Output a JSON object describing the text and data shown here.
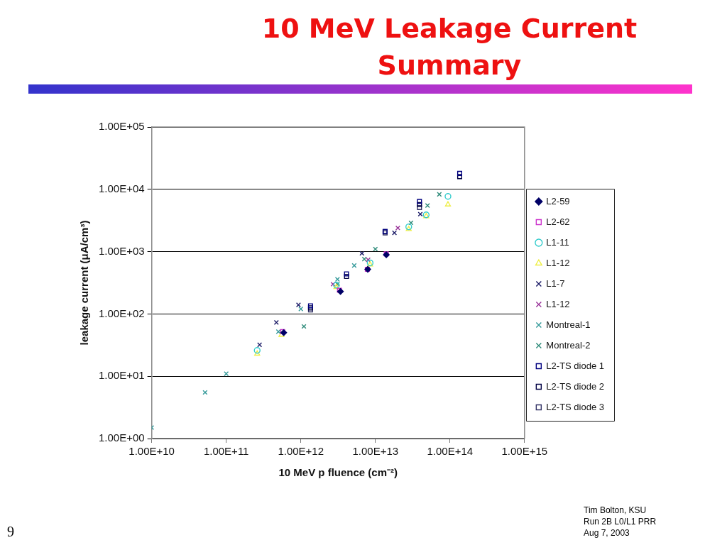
{
  "chart_data": {
    "type": "scatter",
    "title": "10 MeV Leakage Current Summary",
    "xlabel": "10 MeV p fluence (cm⁻²)",
    "ylabel": "leakage current (μA/cm³)",
    "log": "xy",
    "xlim": [
      10000000000.0,
      1000000000000000.0
    ],
    "ylim": [
      1,
      100000
    ],
    "xticks": [
      {
        "value": 10000000000.0,
        "label": "1.00E+10"
      },
      {
        "value": 100000000000.0,
        "label": "1.00E+11"
      },
      {
        "value": 1000000000000.0,
        "label": "1.00E+12"
      },
      {
        "value": 10000000000000.0,
        "label": "1.00E+13"
      },
      {
        "value": 100000000000000.0,
        "label": "1.00E+14"
      },
      {
        "value": 1000000000000000.0,
        "label": "1.00E+15"
      }
    ],
    "yticks": [
      {
        "value": 1,
        "label": "1.00E+00"
      },
      {
        "value": 10,
        "label": "1.00E+01"
      },
      {
        "value": 100,
        "label": "1.00E+02"
      },
      {
        "value": 1000,
        "label": "1.00E+03"
      },
      {
        "value": 10000,
        "label": "1.00E+04"
      },
      {
        "value": 100000,
        "label": "1.00E+05"
      }
    ],
    "grid": "y",
    "legend": "right",
    "annotations": [
      "9",
      "Tim Bolton, KSU",
      "Run 2B L0/L1 PRR",
      "Aug 7, 2003"
    ],
    "series": [
      {
        "name": "L2-59",
        "color": "#000066",
        "marker": "diamond",
        "x": [
          590000000000.0,
          3400000000000.0,
          7900000000000.0,
          14000000000000.0
        ],
        "values": [
          50,
          230,
          520,
          890
        ]
      },
      {
        "name": "L2-62",
        "color": "#cc33cc",
        "marker": "square",
        "x": [
          570000000000.0,
          3300000000000.0,
          7800000000000.0,
          14000000000000.0
        ],
        "values": [
          52,
          240,
          520,
          920
        ]
      },
      {
        "name": "L1-11",
        "color": "#33cccc",
        "marker": "circle",
        "x": [
          260000000000.0,
          3000000000000.0,
          8500000000000.0,
          28000000000000.0,
          48000000000000.0,
          94000000000000.0
        ],
        "values": [
          26,
          290,
          660,
          2500,
          3900,
          7700
        ]
      },
      {
        "name": "L1-12",
        "color": "#eeee44",
        "marker": "triangle",
        "x": [
          260000000000.0,
          550000000000.0,
          3000000000000.0,
          8500000000000.0,
          28000000000000.0,
          48000000000000.0,
          94000000000000.0
        ],
        "values": [
          23,
          46,
          270,
          620,
          2300,
          3700,
          5700
        ]
      },
      {
        "name": "L1-7",
        "color": "#1a1a66",
        "marker": "cross",
        "x": [
          280000000000.0,
          470000000000.0,
          930000000000.0,
          6600000000000.0,
          18000000000000.0,
          40000000000000.0
        ],
        "values": [
          32,
          73,
          140,
          940,
          2000,
          4000
        ]
      },
      {
        "name": "L1-12",
        "color": "#993399",
        "marker": "cross",
        "x": [
          2700000000000.0,
          8000000000000.0,
          20000000000000.0
        ],
        "values": [
          300,
          740,
          2400
        ]
      },
      {
        "name": "Montreal-1",
        "color": "#339999",
        "marker": "cross",
        "x": [
          10000000000.0,
          52000000000.0,
          100000000000.0,
          500000000000.0,
          1000000000000.0,
          3100000000000.0,
          5200000000000.0
        ],
        "values": [
          1.5,
          5.5,
          11,
          52,
          120,
          360,
          600
        ]
      },
      {
        "name": "Montreal-2",
        "color": "#2e8b7a",
        "marker": "cross",
        "x": [
          1100000000000.0,
          3100000000000.0,
          7100000000000.0,
          10000000000000.0,
          30000000000000.0,
          50000000000000.0,
          72000000000000.0
        ],
        "values": [
          63,
          300,
          760,
          1100,
          2900,
          5500,
          8300
        ]
      },
      {
        "name": "L2-TS diode 1",
        "color": "#000080",
        "marker": "square",
        "x": [
          1350000000000.0,
          4100000000000.0,
          13500000000000.0,
          39000000000000.0,
          135000000000000.0
        ],
        "values": [
          135,
          440,
          2100,
          6400,
          18000
        ]
      },
      {
        "name": "L2-TS diode 2",
        "color": "#000044",
        "marker": "square",
        "x": [
          1350000000000.0,
          4100000000000.0,
          13500000000000.0,
          39000000000000.0,
          135000000000000.0
        ],
        "values": [
          125,
          400,
          2100,
          5700,
          16000
        ]
      },
      {
        "name": "L2-TS diode 3",
        "color": "#333366",
        "marker": "square",
        "x": [
          1350000000000.0,
          13500000000000.0,
          39000000000000.0
        ],
        "values": [
          116,
          2000,
          5100
        ]
      }
    ]
  }
}
